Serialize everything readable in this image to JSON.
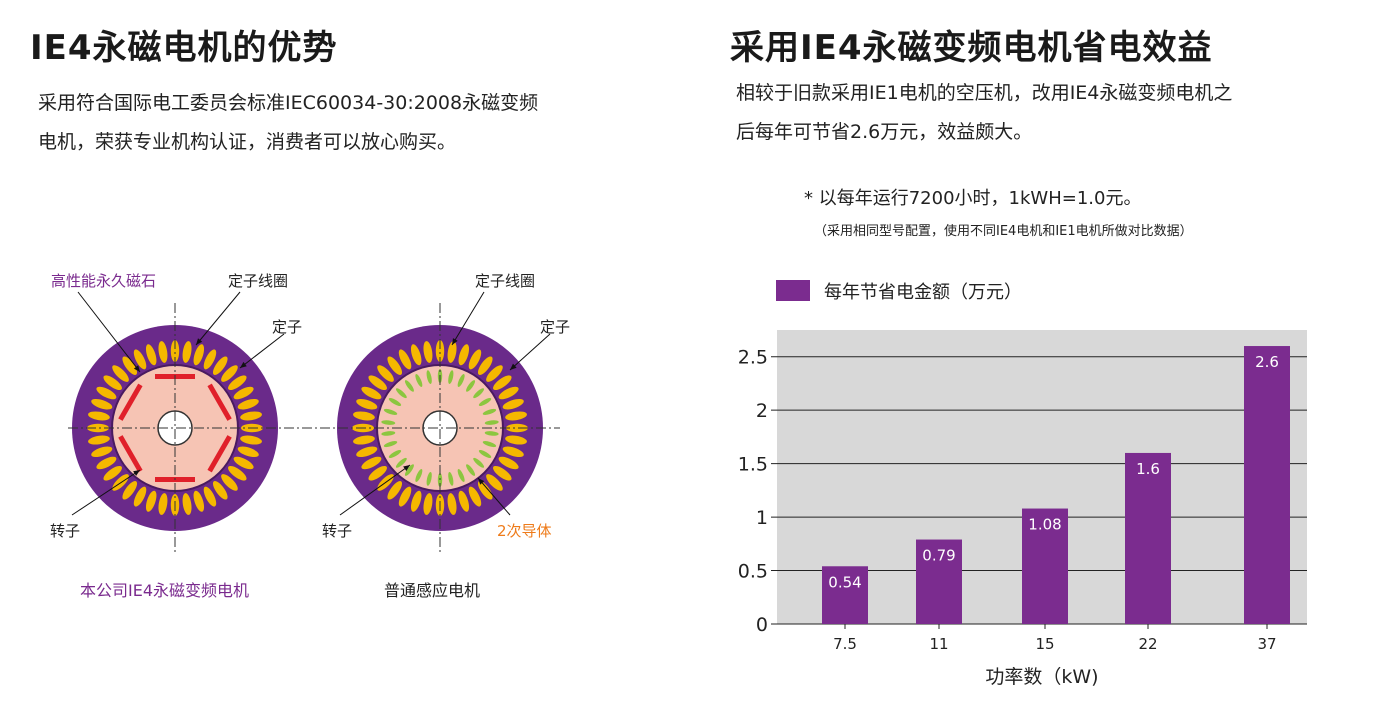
{
  "left": {
    "title": "IE4永磁电机的优势",
    "para_line1": "采用符合国际电工委员会标准IEC60034-30:2008永磁变频",
    "para_line2": "电机，荣获专业机构认证，消费者可以放心购买。",
    "diagram1": {
      "label_magnet": "高性能永久磁石",
      "label_coil": "定子线圈",
      "label_stator": "定子",
      "label_rotor": "转子",
      "caption": "本公司IE4永磁变频电机"
    },
    "diagram2": {
      "label_coil": "定子线圈",
      "label_stator": "定子",
      "label_rotor": "转子",
      "label_conductor": "2次导体",
      "caption": "普通感应电机"
    }
  },
  "right": {
    "title": "采用IE4永磁变频电机省电效益",
    "para_line1": "相较于旧款采用IE1电机的空压机，改用IE4永磁变频电机之",
    "para_line2": "后每年可节省2.6万元，效益颇大。",
    "note1": "* 以每年运行7200小时，1kWH=1.0元。",
    "note2": "（采用相同型号配置，使用不同IE4电机和IE1电机所做对比数据）"
  },
  "colors": {
    "bar": "#7b2c8f",
    "plot_bg": "#d8d8d8",
    "stator": "#6a2a8a",
    "coil": "#f5b800",
    "rotor": "#f6c4b4",
    "magnet": "#e0202a",
    "conductor": "#8cc63f"
  },
  "chart_data": {
    "type": "bar",
    "title": "",
    "categories": [
      "7.5",
      "11",
      "15",
      "22",
      "37"
    ],
    "series": [
      {
        "name": "每年节省电金额（万元）",
        "values": [
          0.54,
          0.79,
          1.08,
          1.6,
          2.6
        ]
      }
    ],
    "value_labels": [
      "0.54",
      "0.79",
      "1.08",
      "1.6",
      "2.6"
    ],
    "xlabel": "功率数（kW)",
    "ylabel": "",
    "ylim": [
      0,
      2.75
    ],
    "yticks": [
      0,
      0.5,
      1,
      1.5,
      2,
      2.5
    ],
    "ytick_labels": [
      "0",
      "0.5",
      "1",
      "1.5",
      "2",
      "2.5"
    ],
    "grid": true,
    "legend": "top-left"
  }
}
